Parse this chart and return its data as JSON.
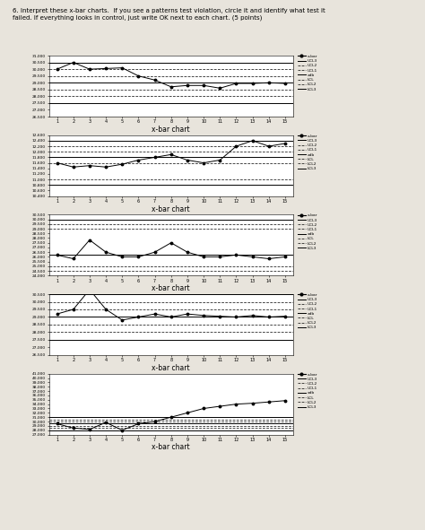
{
  "title_text": "6. Interpret these x-bar charts.  If you see a patterns test violation, circle it and identify what test it\nfailed. If everything looks in control, just write OK next to each chart. (5 points)",
  "bg_color": "#e8e4dc",
  "charts": [
    {
      "title": "x-bar chart",
      "xbar": [
        30000,
        30500,
        30000,
        30050,
        30100,
        29500,
        29200,
        28700,
        28800,
        28800,
        28600,
        28950,
        28950,
        29000,
        28950
      ],
      "xdbar": 29000,
      "ucl3": 30500,
      "ucl2": 30000,
      "ucl1": 29500,
      "lcl1": 28500,
      "lcl2": 28000,
      "lcl3": 27500,
      "ymin": 26500,
      "ymax": 31000,
      "ytick_step": 500
    },
    {
      "title": "x-bar chart",
      "xbar": [
        11600,
        11450,
        11500,
        11450,
        11550,
        11700,
        11800,
        11900,
        11700,
        11600,
        11700,
        12200,
        12400,
        12200,
        12300
      ],
      "xdbar": 11800,
      "ucl3": 12400,
      "ucl2": 12200,
      "ucl1": 12000,
      "lcl1": 11600,
      "lcl2": 11000,
      "lcl3": 10800,
      "ymin": 10400,
      "ymax": 12600,
      "ytick_step": 200
    },
    {
      "title": "x-bar chart",
      "xbar": [
        26200,
        25800,
        27800,
        26500,
        26000,
        26000,
        26500,
        27500,
        26500,
        26000,
        26000,
        26200,
        26000,
        25800,
        26000
      ],
      "xdbar": 26200,
      "ucl3": 30000,
      "ucl2": 29500,
      "ucl1": 29000,
      "lcl1": 25000,
      "lcl2": 24500,
      "lcl3": 24000,
      "ymin": 24000,
      "ymax": 30500,
      "ytick_step": 500
    },
    {
      "title": "x-bar chart",
      "xbar": [
        29200,
        29500,
        30800,
        29500,
        28800,
        29000,
        29200,
        29000,
        29200,
        29100,
        29050,
        29000,
        29100,
        29000,
        29050
      ],
      "xdbar": 29000,
      "ucl3": 30500,
      "ucl2": 30000,
      "ucl1": 29500,
      "lcl1": 28500,
      "lcl2": 28000,
      "lcl3": 27500,
      "ymin": 26500,
      "ymax": 30500,
      "ytick_step": 500
    },
    {
      "title": "x-bar chart",
      "xbar": [
        29500,
        28500,
        28200,
        29800,
        28000,
        29500,
        30000,
        31000,
        32000,
        33000,
        33500,
        34000,
        34200,
        34500,
        34800
      ],
      "xdbar": 29500,
      "ucl3": 31000,
      "ucl2": 30500,
      "ucl1": 30000,
      "lcl1": 29000,
      "lcl2": 28500,
      "lcl3": 28000,
      "ymin": 27000,
      "ymax": 41000,
      "ytick_step": 1000
    }
  ],
  "legend_labels": [
    "x-bar",
    "UCL3",
    "UCL2",
    "UCL1",
    "xdb",
    "LCL",
    "LCL2",
    "LCL3"
  ]
}
